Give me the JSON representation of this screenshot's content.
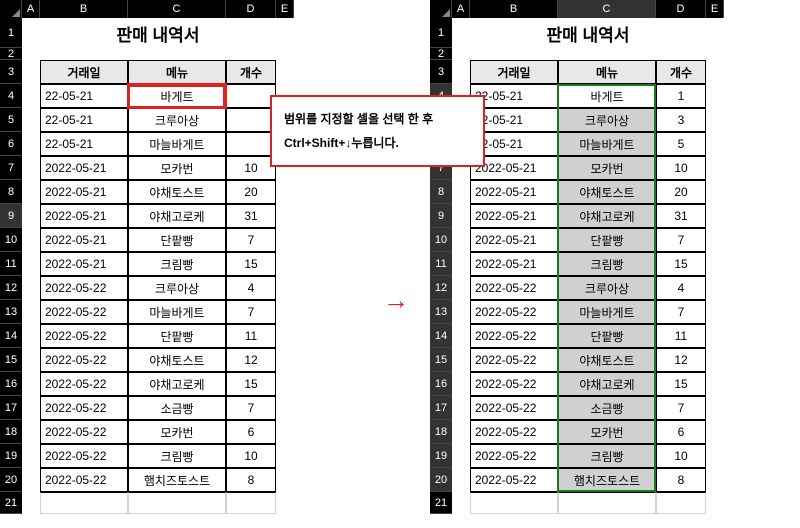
{
  "title": "판매 내역서",
  "columns": {
    "A": "A",
    "B": "B",
    "C": "C",
    "D": "D",
    "E": "E"
  },
  "headers": {
    "date": "거래일",
    "menu": "메뉴",
    "qty": "개수"
  },
  "rows": [
    {
      "n": "4",
      "date": "2022-05-21",
      "menu": "바게트",
      "qty": "1"
    },
    {
      "n": "5",
      "date": "2022-05-21",
      "menu": "크루아상",
      "qty": "3"
    },
    {
      "n": "6",
      "date": "2022-05-21",
      "menu": "마늘바게트",
      "qty": "5"
    },
    {
      "n": "7",
      "date": "2022-05-21",
      "menu": "모카번",
      "qty": "10"
    },
    {
      "n": "8",
      "date": "2022-05-21",
      "menu": "야채토스트",
      "qty": "20"
    },
    {
      "n": "9",
      "date": "2022-05-21",
      "menu": "야채고로케",
      "qty": "31"
    },
    {
      "n": "10",
      "date": "2022-05-21",
      "menu": "단팥빵",
      "qty": "7"
    },
    {
      "n": "11",
      "date": "2022-05-21",
      "menu": "크림빵",
      "qty": "15"
    },
    {
      "n": "12",
      "date": "2022-05-22",
      "menu": "크루아상",
      "qty": "4"
    },
    {
      "n": "13",
      "date": "2022-05-22",
      "menu": "마늘바게트",
      "qty": "7"
    },
    {
      "n": "14",
      "date": "2022-05-22",
      "menu": "단팥빵",
      "qty": "11"
    },
    {
      "n": "15",
      "date": "2022-05-22",
      "menu": "야채토스트",
      "qty": "12"
    },
    {
      "n": "16",
      "date": "2022-05-22",
      "menu": "야채고로케",
      "qty": "15"
    },
    {
      "n": "17",
      "date": "2022-05-22",
      "menu": "소금빵",
      "qty": "7"
    },
    {
      "n": "18",
      "date": "2022-05-22",
      "menu": "모카번",
      "qty": "6"
    },
    {
      "n": "19",
      "date": "2022-05-22",
      "menu": "크림빵",
      "qty": "10"
    },
    {
      "n": "20",
      "date": "2022-05-22",
      "menu": "햄치즈토스트",
      "qty": "8"
    }
  ],
  "left": {
    "date_short_rows": [
      "4",
      "5",
      "6"
    ],
    "active_row": "9",
    "hidden_qty_rows": [
      "4",
      "5",
      "6"
    ]
  },
  "right": {
    "date_short_rows": [
      "4",
      "5",
      "6"
    ],
    "active_col": "C",
    "sel_first": "4",
    "active_rows": [
      "4",
      "5",
      "6",
      "7",
      "8",
      "9",
      "10",
      "11",
      "12",
      "13",
      "14",
      "15",
      "16",
      "17",
      "18",
      "19",
      "20"
    ]
  },
  "callout": {
    "line1": "범위를 지정할 셀을 선택 한 후",
    "line2": "Ctrl+Shift+↓누릅니다."
  },
  "arrow": "→",
  "rownum": {
    "r1": "1",
    "r2": "2",
    "r3": "3",
    "r21": "21"
  },
  "colors": {
    "red": "#d22",
    "green": "#1a7a1a",
    "header_bg": "#e8e8e8",
    "sel_bg": "#d0d0d0"
  }
}
